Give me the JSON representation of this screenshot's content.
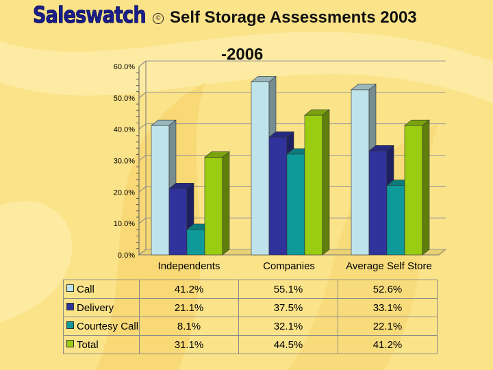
{
  "header": {
    "brand": "Saleswatch",
    "copyright_symbol": "©",
    "title_line1": "Self Storage Assessments 2003",
    "title_line2": "-2006"
  },
  "colors": {
    "background": "#fbe38a",
    "series": [
      "#bfe3ea",
      "#30339c",
      "#0f9a9a",
      "#9acc12"
    ]
  },
  "chart_data": {
    "type": "bar",
    "categories": [
      "Independents",
      "Companies",
      "Average Self Store"
    ],
    "series": [
      {
        "name": "Call",
        "values": [
          41.2,
          55.1,
          52.6
        ],
        "labels": [
          "41.2%",
          "55.1%",
          "52.6%"
        ]
      },
      {
        "name": "Delivery",
        "values": [
          21.1,
          37.5,
          33.1
        ],
        "labels": [
          "21.1%",
          "37.5%",
          "33.1%"
        ]
      },
      {
        "name": "Courtesy Call",
        "values": [
          8.1,
          32.1,
          22.1
        ],
        "labels": [
          "8.1%",
          "32.1%",
          "22.1%"
        ]
      },
      {
        "name": "Total",
        "values": [
          31.1,
          44.5,
          41.2
        ],
        "labels": [
          "31.1%",
          "44.5%",
          "41.2%"
        ]
      }
    ],
    "ylim": [
      0,
      60
    ],
    "yticks": [
      "0.0%",
      "10.0%",
      "20.0%",
      "30.0%",
      "40.0%",
      "50.0%",
      "60.0%"
    ],
    "grid": true,
    "legend": "data table below chart"
  }
}
